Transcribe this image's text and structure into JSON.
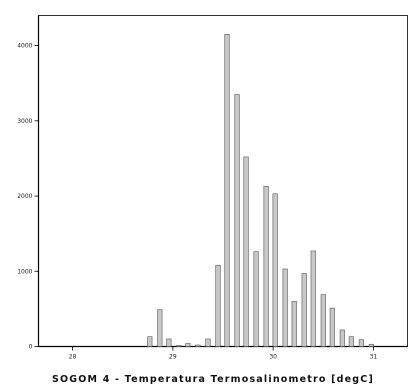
{
  "chart_data": {
    "type": "bar",
    "title": "",
    "xlabel": "SOGOM 4 - Temperatura Termosalinometro [degC]",
    "ylabel": "",
    "xlim": [
      27.66,
      31.34
    ],
    "ylim": [
      0,
      4400
    ],
    "xticks": [
      28,
      29,
      30,
      31
    ],
    "xtick_labels": [
      "28",
      "29",
      "30",
      "31"
    ],
    "yticks": [
      0,
      1000,
      2000,
      3000,
      4000
    ],
    "ytick_labels": [
      "0",
      "1000",
      "2000",
      "3000",
      "4000"
    ],
    "bar_width": 0.045,
    "bar_color": "#c8c8c8",
    "bar_edge_color": "#555555",
    "grid": false,
    "bins": [
      {
        "x": 28.77,
        "value": 130
      },
      {
        "x": 28.87,
        "value": 490
      },
      {
        "x": 28.96,
        "value": 100
      },
      {
        "x": 29.06,
        "value": 15
      },
      {
        "x": 29.15,
        "value": 40
      },
      {
        "x": 29.25,
        "value": 20
      },
      {
        "x": 29.35,
        "value": 100
      },
      {
        "x": 29.45,
        "value": 1080
      },
      {
        "x": 29.54,
        "value": 4150
      },
      {
        "x": 29.64,
        "value": 3350
      },
      {
        "x": 29.73,
        "value": 2520
      },
      {
        "x": 29.83,
        "value": 1260
      },
      {
        "x": 29.93,
        "value": 2130
      },
      {
        "x": 30.02,
        "value": 2030
      },
      {
        "x": 30.12,
        "value": 1030
      },
      {
        "x": 30.21,
        "value": 600
      },
      {
        "x": 30.31,
        "value": 970
      },
      {
        "x": 30.4,
        "value": 1270
      },
      {
        "x": 30.5,
        "value": 690
      },
      {
        "x": 30.59,
        "value": 510
      },
      {
        "x": 30.69,
        "value": 220
      },
      {
        "x": 30.78,
        "value": 130
      },
      {
        "x": 30.88,
        "value": 90
      },
      {
        "x": 30.98,
        "value": 30
      }
    ]
  }
}
